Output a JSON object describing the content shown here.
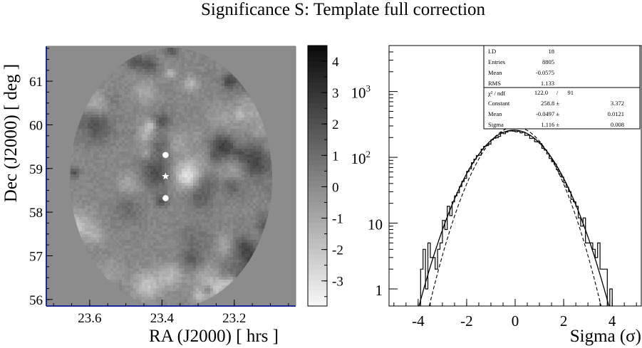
{
  "title": "Significance S: Template full correction",
  "chart_data": [
    {
      "type": "heatmap",
      "xlabel": "RA (J2000) [ hrs ]",
      "ylabel": "Dec (J2000) [ deg ]",
      "xticks": [
        "23.6",
        "23.4",
        "23.2"
      ],
      "yticks": [
        "56",
        "57",
        "58",
        "59",
        "60",
        "61"
      ],
      "xlim": [
        23.72,
        23.03
      ],
      "ylim": [
        55.85,
        61.8
      ],
      "colorbar": {
        "ticks": [
          "-3",
          "-2",
          "-1",
          "0",
          "1",
          "2",
          "3",
          "4"
        ],
        "range": [
          -3.8,
          4.5
        ],
        "palette": "grayscale"
      },
      "markers": [
        {
          "type": "dot",
          "ra": 23.39,
          "dec": 59.31
        },
        {
          "type": "star",
          "ra": 23.39,
          "dec": 58.82
        },
        {
          "type": "dot",
          "ra": 23.39,
          "dec": 58.32
        }
      ]
    },
    {
      "type": "histogram",
      "xlabel": "Sigma (σ)",
      "xticks": [
        "-4",
        "-2",
        "0",
        "2",
        "4"
      ],
      "xlim": [
        -5.2,
        5.2
      ],
      "ylim": [
        0.55,
        5000
      ],
      "yscale": "log",
      "yticks": [
        {
          "base": "10",
          "exp": "3"
        },
        {
          "base": "10",
          "exp": "2"
        },
        {
          "base": "10",
          "exp": ""
        },
        {
          "base": "1",
          "exp": ""
        }
      ],
      "stats": [
        {
          "label": "I.D",
          "value": "18"
        },
        {
          "label": "Entries",
          "value": "8805"
        },
        {
          "label": "Mean",
          "value": "-0.0575"
        },
        {
          "label": "RMS",
          "value": "1.133"
        }
      ],
      "fit": {
        "chi2": {
          "label": "χ² / ndf",
          "value": "122.0",
          "ndf": "91"
        },
        "params": [
          {
            "label": "Constant",
            "value": "258.8 ±",
            "error": "3.372"
          },
          {
            "label": "Mean",
            "value": "-0.0497 ±",
            "error": "0.0121"
          },
          {
            "label": "Sigma",
            "value": "1.116 ±",
            "error": "0.008"
          }
        ]
      },
      "fit_curve": {
        "constant": 258.8,
        "mean": -0.0497,
        "sigma": 1.116,
        "style": "solid"
      },
      "reference_curve": {
        "constant": 290,
        "mean": 0,
        "sigma": 1.0,
        "style": "dashed"
      },
      "bin_width": 0.1
    }
  ]
}
